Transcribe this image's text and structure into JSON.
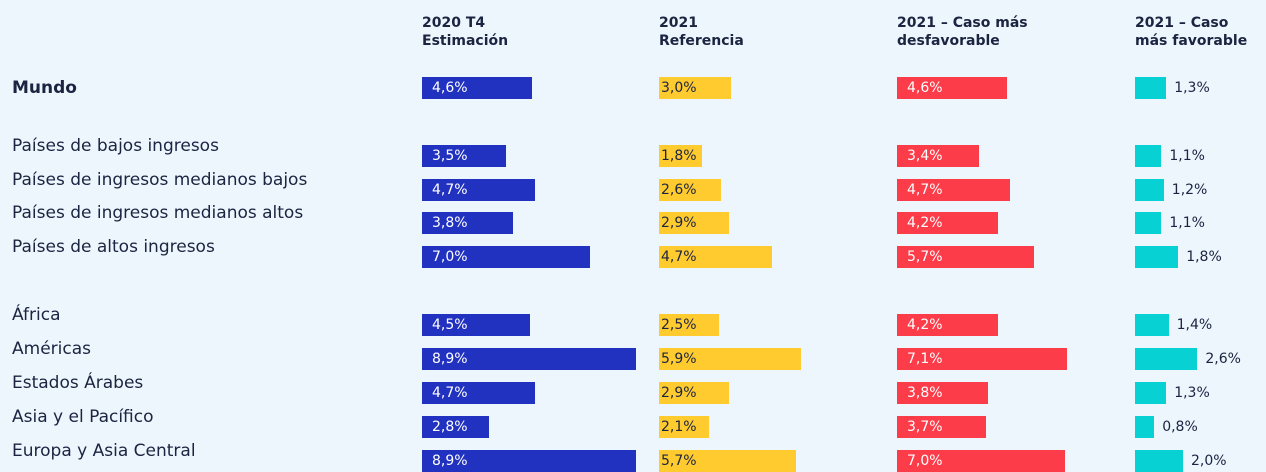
{
  "chart_data": {
    "type": "bar",
    "orientation": "horizontal",
    "categories": [
      "Mundo",
      "Países de bajos ingresos",
      "Países de ingresos medianos bajos",
      "Países de ingresos medianos altos",
      "Países de altos ingresos",
      "África",
      "Américas",
      "Estados Árabes",
      "Asia y el Pacífico",
      "Europa y Asia Central"
    ],
    "series": [
      {
        "name": "2020 T4\nEstimación",
        "color": "#2131c0",
        "values": [
          4.6,
          3.5,
          4.7,
          3.8,
          7.0,
          4.5,
          8.9,
          4.7,
          2.8,
          8.9
        ],
        "value_labels": [
          "4,6%",
          "3,5%",
          "4,7%",
          "3,8%",
          "7,0%",
          "4,5%",
          "8,9%",
          "4,7%",
          "2,8%",
          "8,9%"
        ]
      },
      {
        "name": "2021\nReferencia",
        "color": "#ffcb2f",
        "values": [
          3.0,
          1.8,
          2.6,
          2.9,
          4.7,
          2.5,
          5.9,
          2.9,
          2.1,
          5.7
        ],
        "value_labels": [
          "3,0%",
          "1,8%",
          "2,6%",
          "2,9%",
          "4,7%",
          "2,5%",
          "5,9%",
          "2,9%",
          "2,1%",
          "5,7%"
        ]
      },
      {
        "name": "2021 – Caso más\ndesfavorable",
        "color": "#fd3c4a",
        "values": [
          4.6,
          3.4,
          4.7,
          4.2,
          5.7,
          4.2,
          7.1,
          3.8,
          3.7,
          7.0
        ],
        "value_labels": [
          "4,6%",
          "3,4%",
          "4,7%",
          "4,2%",
          "5,7%",
          "4,2%",
          "7,1%",
          "3,8%",
          "3,7%",
          "7,0%"
        ]
      },
      {
        "name": "2021 – Caso\nmás favorable",
        "color": "#07d1d3",
        "values": [
          1.3,
          1.1,
          1.2,
          1.1,
          1.8,
          1.4,
          2.6,
          1.3,
          0.8,
          2.0
        ],
        "value_labels": [
          "1,3%",
          "1,1%",
          "1,2%",
          "1,1%",
          "1,8%",
          "1,4%",
          "2,6%",
          "1,3%",
          "0,8%",
          "2,0%"
        ]
      }
    ]
  }
}
